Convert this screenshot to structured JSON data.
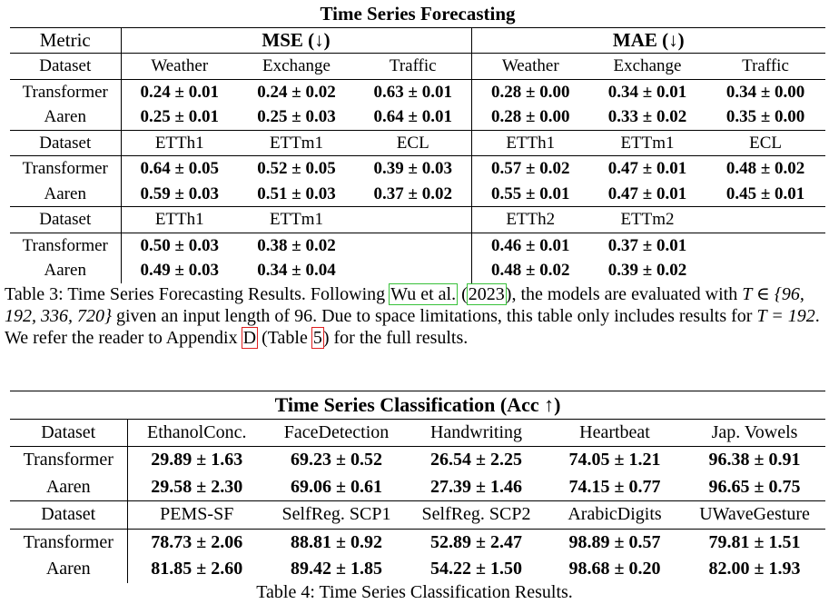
{
  "table3": {
    "title": "Time Series Forecasting",
    "metric_label": "Metric",
    "mse_label": "MSE (↓)",
    "mae_label": "MAE (↓)",
    "dataset_label": "Dataset",
    "blocks": [
      {
        "mse_datasets": [
          "Weather",
          "Exchange",
          "Traffic"
        ],
        "mae_datasets": [
          "Weather",
          "Exchange",
          "Traffic"
        ],
        "rows": [
          {
            "model": "Transformer",
            "mse": [
              "0.24 ± 0.01",
              "0.24 ± 0.02",
              "0.63 ± 0.01"
            ],
            "mae": [
              "0.28 ± 0.00",
              "0.34 ± 0.01",
              "0.34 ± 0.00"
            ]
          },
          {
            "model": "Aaren",
            "mse": [
              "0.25 ± 0.01",
              "0.25 ± 0.03",
              "0.64 ± 0.01"
            ],
            "mae": [
              "0.28 ± 0.00",
              "0.33 ± 0.02",
              "0.35 ± 0.00"
            ]
          }
        ]
      },
      {
        "mse_datasets": [
          "ETTh1",
          "ETTm1",
          "ECL"
        ],
        "mae_datasets": [
          "ETTh1",
          "ETTm1",
          "ECL"
        ],
        "rows": [
          {
            "model": "Transformer",
            "mse": [
              "0.64 ± 0.05",
              "0.52 ± 0.05",
              "0.39 ± 0.03"
            ],
            "mae": [
              "0.57 ± 0.02",
              "0.47 ± 0.01",
              "0.48 ± 0.02"
            ]
          },
          {
            "model": "Aaren",
            "mse": [
              "0.59 ± 0.03",
              "0.51 ± 0.03",
              "0.37 ± 0.02"
            ],
            "mae": [
              "0.55 ± 0.01",
              "0.47 ± 0.01",
              "0.45 ± 0.01"
            ]
          }
        ]
      },
      {
        "mse_datasets": [
          "ETTh1",
          "ETTm1",
          ""
        ],
        "mae_datasets": [
          "ETTh2",
          "ETTm2",
          ""
        ],
        "rows": [
          {
            "model": "Transformer",
            "mse": [
              "0.50 ± 0.03",
              "0.38 ± 0.02",
              ""
            ],
            "mae": [
              "0.46 ± 0.01",
              "0.37 ± 0.01",
              ""
            ]
          },
          {
            "model": "Aaren",
            "mse": [
              "0.49 ± 0.03",
              "0.34 ± 0.04",
              ""
            ],
            "mae": [
              "0.48 ± 0.02",
              "0.39 ± 0.02",
              ""
            ]
          }
        ]
      }
    ],
    "caption": {
      "p1": "Table 3: Time Series Forecasting Results. Following ",
      "cite_author": "Wu et al.",
      "p2": " (",
      "cite_year": "2023",
      "p3": "), the models are evaluated with ",
      "math1": "T ∈ {96, 192, 336, 720}",
      "p4": " given an input length of 96. Due to space limitations, this table only includes results for ",
      "math2": "T = 192",
      "p5": ". We refer the reader to Appendix ",
      "appendix_ref": "D",
      "p6": " (Table ",
      "table_ref": "5",
      "p7": ") for the full results."
    }
  },
  "table4": {
    "title": "Time Series Classification (Acc ↑)",
    "dataset_label": "Dataset",
    "blocks": [
      {
        "datasets": [
          "EthanolConc.",
          "FaceDetection",
          "Handwriting",
          "Heartbeat",
          "Jap. Vowels"
        ],
        "rows": [
          {
            "model": "Transformer",
            "values": [
              "29.89 ± 1.63",
              "69.23 ± 0.52",
              "26.54 ± 2.25",
              "74.05 ± 1.21",
              "96.38 ± 0.91"
            ]
          },
          {
            "model": "Aaren",
            "values": [
              "29.58 ± 2.30",
              "69.06 ± 0.61",
              "27.39 ± 1.46",
              "74.15 ± 0.77",
              "96.65 ± 0.75"
            ]
          }
        ]
      },
      {
        "datasets": [
          "PEMS-SF",
          "SelfReg. SCP1",
          "SelfReg. SCP2",
          "ArabicDigits",
          "UWaveGesture"
        ],
        "rows": [
          {
            "model": "Transformer",
            "values": [
              "78.73 ± 2.06",
              "88.81 ± 0.92",
              "52.89 ± 2.47",
              "98.89 ± 0.57",
              "79.81 ± 1.51"
            ]
          },
          {
            "model": "Aaren",
            "values": [
              "81.85 ± 2.60",
              "89.42 ± 1.85",
              "54.22 ± 1.50",
              "98.68 ± 0.20",
              "82.00 ± 1.93"
            ]
          }
        ]
      }
    ],
    "caption": "Table 4: Time Series Classification Results."
  },
  "colors": {
    "cite_box": "#38c13a",
    "ref_box": "#e02020"
  }
}
